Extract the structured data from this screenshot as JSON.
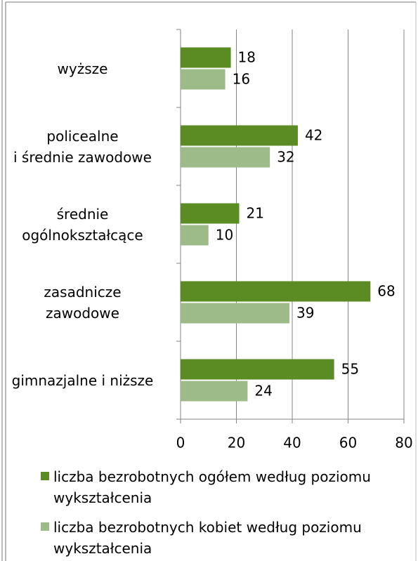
{
  "chart_data": {
    "type": "barh",
    "categories": [
      "wyższe",
      "policealne\ni średnie zawodowe",
      "średnie\nogólnokształcące",
      "zasadnicze\nzawodowe",
      "gimnazjalne i niższe"
    ],
    "series": [
      {
        "name": "liczba bezrobotnych ogółem według poziomu wykształcenia",
        "color": "#5b8c23",
        "values": [
          18,
          42,
          21,
          68,
          55
        ]
      },
      {
        "name": "liczba bezrobotnych kobiet według poziomu wykształcenia",
        "color": "#9dbb88",
        "values": [
          16,
          32,
          10,
          39,
          24
        ]
      }
    ],
    "xlim": [
      0,
      80
    ],
    "xticks": [
      0,
      20,
      40,
      60,
      80
    ],
    "grid": true
  }
}
